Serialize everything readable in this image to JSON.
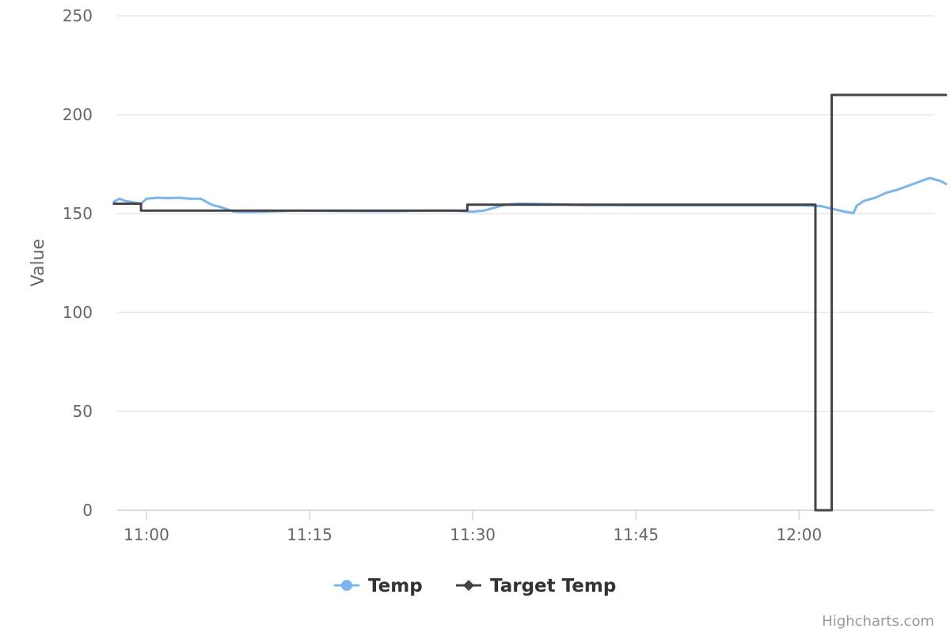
{
  "chart_data": {
    "type": "line",
    "title": "",
    "xlabel": "",
    "ylabel": "Value",
    "x_axis": {
      "type": "time",
      "range": [
        "10:57",
        "12:09"
      ],
      "ticks": [
        "11:00",
        "11:15",
        "11:30",
        "11:45",
        "12:00"
      ]
    },
    "y_axis": {
      "range": [
        0,
        250
      ],
      "ticks": [
        0,
        50,
        100,
        150,
        200,
        250
      ]
    },
    "grid": true,
    "legend_position": "bottom-center",
    "series": [
      {
        "name": "Temp",
        "color": "#7cb5ec",
        "marker": "circle",
        "points": [
          [
            "10:57",
            156
          ],
          [
            "10:57.5",
            157.5
          ],
          [
            "10:58",
            156.5
          ],
          [
            "10:59",
            155.5
          ],
          [
            "10:59.5",
            155
          ],
          [
            "11:00",
            157.5
          ],
          [
            "11:01",
            158
          ],
          [
            "11:02",
            157.8
          ],
          [
            "11:03",
            158
          ],
          [
            "11:04",
            157.5
          ],
          [
            "11:05",
            157.5
          ],
          [
            "11:06",
            154.5
          ],
          [
            "11:07",
            153
          ],
          [
            "11:08",
            151
          ],
          [
            "11:09",
            150.8
          ],
          [
            "11:11",
            151
          ],
          [
            "11:14",
            151.5
          ],
          [
            "11:17",
            151.3
          ],
          [
            "11:20",
            151.2
          ],
          [
            "11:23",
            151.2
          ],
          [
            "11:26",
            151.5
          ],
          [
            "11:28",
            151.5
          ],
          [
            "11:30",
            151
          ],
          [
            "11:31",
            151.5
          ],
          [
            "11:32",
            153
          ],
          [
            "11:33",
            154.5
          ],
          [
            "11:34",
            155
          ],
          [
            "11:35",
            155
          ],
          [
            "11:37",
            154.8
          ],
          [
            "11:40",
            154.3
          ],
          [
            "11:45",
            154.2
          ],
          [
            "11:50",
            154.2
          ],
          [
            "11:55",
            154.2
          ],
          [
            "12:00",
            154.2
          ],
          [
            "12:02",
            153.8
          ],
          [
            "12:03",
            152.5
          ],
          [
            "12:04",
            151.2
          ],
          [
            "12:05",
            150.2
          ],
          [
            "12:05.3",
            154
          ],
          [
            "12:06",
            156.5
          ],
          [
            "12:07",
            158
          ],
          [
            "12:08",
            160.5
          ],
          [
            "12:09",
            162
          ],
          [
            "12:10",
            164
          ],
          [
            "12:11",
            166
          ],
          [
            "12:12",
            168
          ],
          [
            "12:13",
            166.5
          ],
          [
            "12:13.5",
            165
          ]
        ]
      },
      {
        "name": "Target Temp",
        "color": "#434348",
        "marker": "diamond",
        "step": true,
        "points": [
          [
            "10:57",
            155
          ],
          [
            "10:59.5",
            155
          ],
          [
            "10:59.5",
            151.5
          ],
          [
            "11:29.5",
            151.5
          ],
          [
            "11:29.5",
            154.5
          ],
          [
            "12:01.5",
            154.5
          ],
          [
            "12:01.5",
            0
          ],
          [
            "12:03",
            0
          ],
          [
            "12:03",
            210
          ],
          [
            "12:13.5",
            210
          ]
        ]
      }
    ],
    "credits": "Highcharts.com"
  }
}
